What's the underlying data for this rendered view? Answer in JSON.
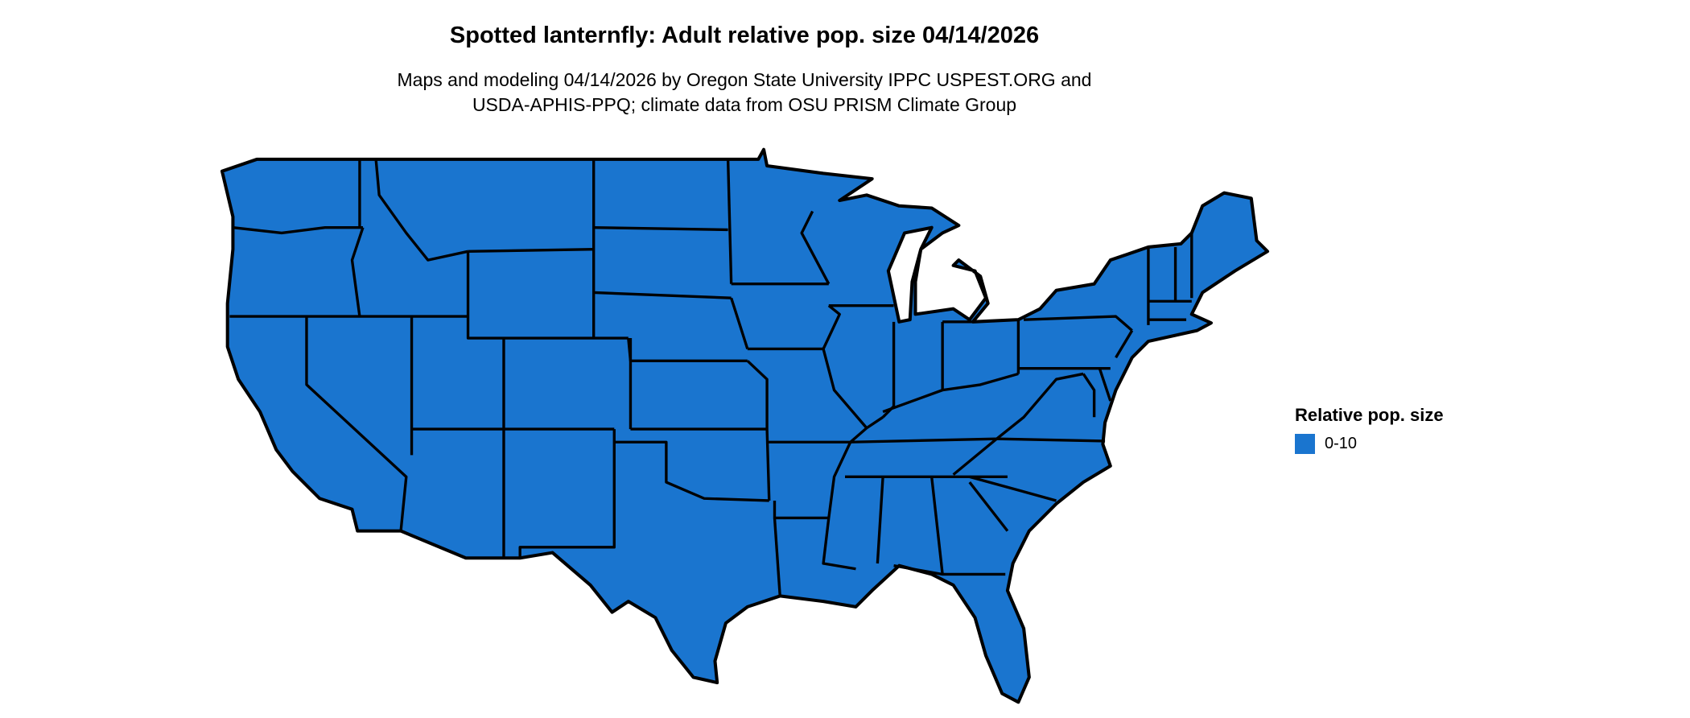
{
  "title": "Spotted lanternfly: Adult relative pop. size 04/14/2026",
  "subtitle": {
    "line1": "Maps and modeling 04/14/2026 by Oregon State University IPPC USPEST.ORG and",
    "line2": "USDA-APHIS-PPQ; climate data from OSU PRISM Climate Group"
  },
  "map": {
    "region": "contiguous United States",
    "fill_color": "#1a75cf",
    "border_color": "#000000"
  },
  "legend": {
    "title": "Relative pop. size",
    "items": [
      {
        "label": "0-10",
        "color": "#1a75cf"
      }
    ]
  }
}
